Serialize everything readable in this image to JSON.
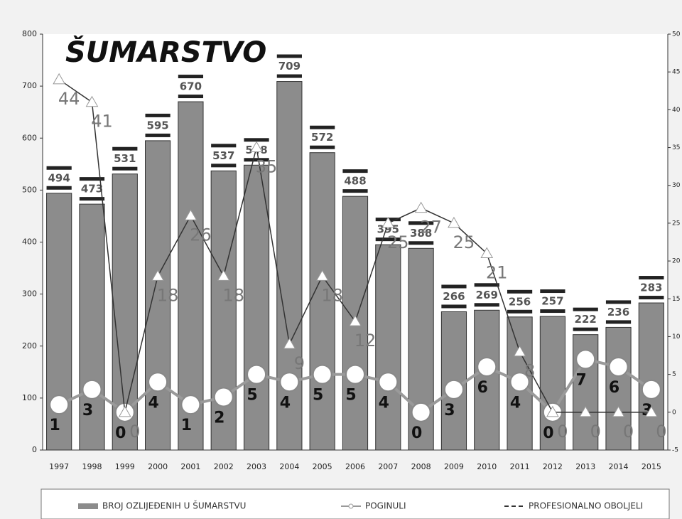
{
  "chart_data": {
    "type": "bar",
    "title": "ŠUMARSTVO",
    "categories": [
      "1997",
      "1998",
      "1999",
      "2000",
      "2001",
      "2002",
      "2003",
      "2004",
      "2005",
      "2006",
      "2007",
      "2008",
      "2009",
      "2010",
      "2011",
      "2012",
      "2013",
      "2014",
      "2015"
    ],
    "series": [
      {
        "name": "BROJ OZLIJEĐENIH U ŠUMARSTVU",
        "type": "bar",
        "color": "#8c8c8c",
        "values": [
          494,
          473,
          531,
          595,
          670,
          537,
          548,
          709,
          572,
          488,
          395,
          388,
          266,
          269,
          256,
          257,
          222,
          236,
          283
        ]
      },
      {
        "name": "POGINULI",
        "type": "line",
        "marker": "circle",
        "axis": "y2",
        "color": "#9a9a9a",
        "values": [
          1,
          3,
          0,
          4,
          1,
          2,
          5,
          4,
          5,
          5,
          4,
          0,
          3,
          6,
          4,
          0,
          7,
          6,
          3
        ]
      },
      {
        "name": "PROFESIONALNO OBOLJELI",
        "type": "line",
        "marker": "triangle",
        "axis": "y2",
        "color": "#333333",
        "values": [
          44,
          41,
          0,
          18,
          26,
          18,
          35,
          9,
          18,
          12,
          25,
          27,
          25,
          21,
          8,
          0,
          0,
          0,
          0
        ]
      }
    ],
    "ylim": [
      0,
      800
    ],
    "yticks": [
      0,
      100,
      200,
      300,
      400,
      500,
      600,
      700,
      800
    ],
    "y2lim": [
      -5,
      50
    ],
    "y2ticks": [
      -5,
      0,
      5,
      10,
      15,
      20,
      25,
      30,
      35,
      40,
      45,
      50
    ],
    "legend": "bottom"
  }
}
